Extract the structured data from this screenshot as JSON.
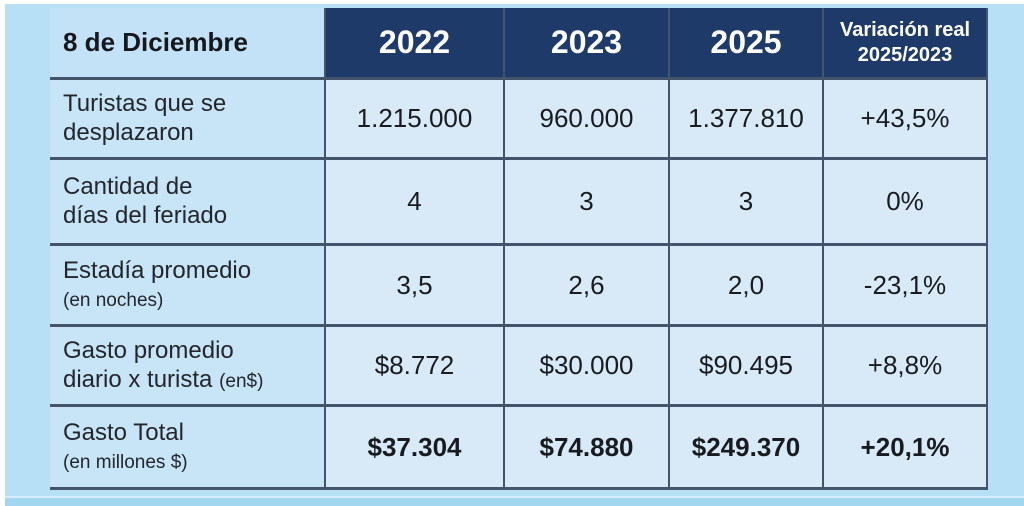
{
  "colors": {
    "page_background": "#b7dff6",
    "bottom_strip": "#a2d6f1",
    "header_background": "#1e3a69",
    "label_cell_background": "#c8e4f7",
    "data_cell_background": "#d8e9f8",
    "border": "#44546a",
    "header_text": "#ffffff",
    "body_text": "#181b20"
  },
  "chart_data": {
    "type": "table",
    "title": "8 de Diciembre",
    "columns": [
      "2022",
      "2023",
      "2025",
      "Variación real 2025/2023"
    ],
    "rows": [
      {
        "label": "Turistas que se desplazaron",
        "values": [
          "1.215.000",
          "960.000",
          "1.377.810",
          "+43,5%"
        ]
      },
      {
        "label": "Cantidad de días del feriado",
        "values": [
          "4",
          "3",
          "3",
          "0%"
        ]
      },
      {
        "label": "Estadía promedio (en noches)",
        "values": [
          "3,5",
          "2,6",
          "2,0",
          "-23,1%"
        ]
      },
      {
        "label": "Gasto promedio diario x turista (en$)",
        "values": [
          "$8.772",
          "$30.000",
          "$90.495",
          "+8,8%"
        ]
      },
      {
        "label": "Gasto Total (en millones $)",
        "values": [
          "$37.304",
          "$74.880",
          "$249.370",
          "+20,1%"
        ]
      }
    ]
  },
  "table": {
    "corner_label": "8 de Diciembre",
    "year_headers": [
      "2022",
      "2023",
      "2025"
    ],
    "variation_header": {
      "line1": "Variación real",
      "line2": "2025/2023"
    },
    "rows": [
      {
        "label_line1": "Turistas que se",
        "label_line2": "desplazaron",
        "label_paren": "",
        "values": [
          "1.215.000",
          "960.000",
          "1.377.810",
          "+43,5%"
        ]
      },
      {
        "label_line1": "Cantidad de",
        "label_line2": "días del feriado",
        "label_paren": "",
        "values": [
          "4",
          "3",
          "3",
          "0%"
        ]
      },
      {
        "label_line1": "Estadía promedio",
        "label_line2": "",
        "label_paren": "(en noches)",
        "values": [
          "3,5",
          "2,6",
          "2,0",
          "-23,1%"
        ]
      },
      {
        "label_line1": "Gasto promedio",
        "label_line2": "diario x turista ",
        "label_paren": "(en$)",
        "values": [
          "$8.772",
          "$30.000",
          "$90.495",
          "+8,8%"
        ]
      },
      {
        "label_line1": "Gasto Total",
        "label_line2": "",
        "label_paren": "(en millones $)",
        "values": [
          "$37.304",
          "$74.880",
          "$249.370",
          "+20,1%"
        ]
      }
    ]
  }
}
